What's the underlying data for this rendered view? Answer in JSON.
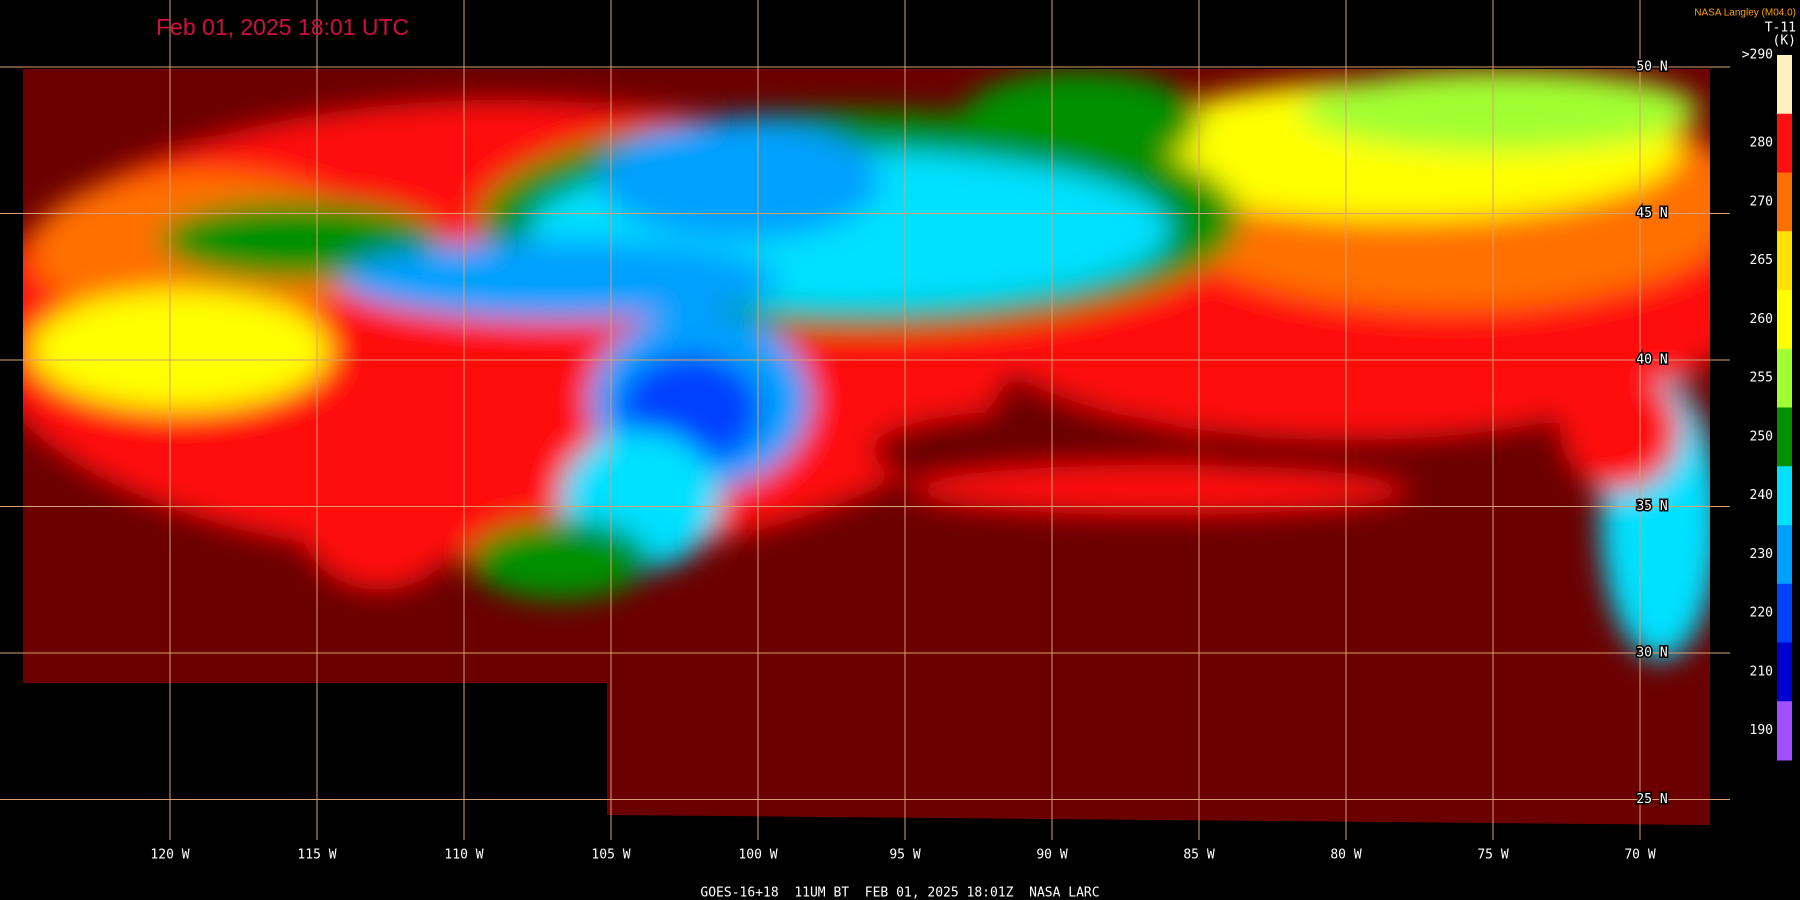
{
  "title": "Feb 01, 2025 18:01 UTC",
  "credit": "NASA Langley (M04.0)",
  "legend": {
    "title": "T-11",
    "unit": "(K)",
    "items": [
      {
        "label": ">290",
        "color": "#fff0c0"
      },
      {
        "label": "280",
        "color": "#ff1010"
      },
      {
        "label": "270",
        "color": "#ff7000"
      },
      {
        "label": "265",
        "color": "#ffe000"
      },
      {
        "label": "260",
        "color": "#ffff00"
      },
      {
        "label": "255",
        "color": "#a0ff30"
      },
      {
        "label": "250",
        "color": "#009000"
      },
      {
        "label": "240",
        "color": "#00e0ff"
      },
      {
        "label": "230",
        "color": "#00a0ff"
      },
      {
        "label": "220",
        "color": "#0040ff"
      },
      {
        "label": "210",
        "color": "#0000d0"
      },
      {
        "label": "190",
        "color": "#a050ff"
      }
    ]
  },
  "lat_labels": [
    "50 N",
    "45 N",
    "40 N",
    "35 N",
    "30 N",
    "25 N"
  ],
  "lon_labels": [
    "120 W",
    "115 W",
    "110 W",
    "105 W",
    "100 W",
    "95 W",
    "90 W",
    "85 W",
    "80 W",
    "75 W",
    "70 W"
  ],
  "footer": "GOES-16+18  11UM BT  FEB 01, 2025 18:01Z  NASA LARC"
}
